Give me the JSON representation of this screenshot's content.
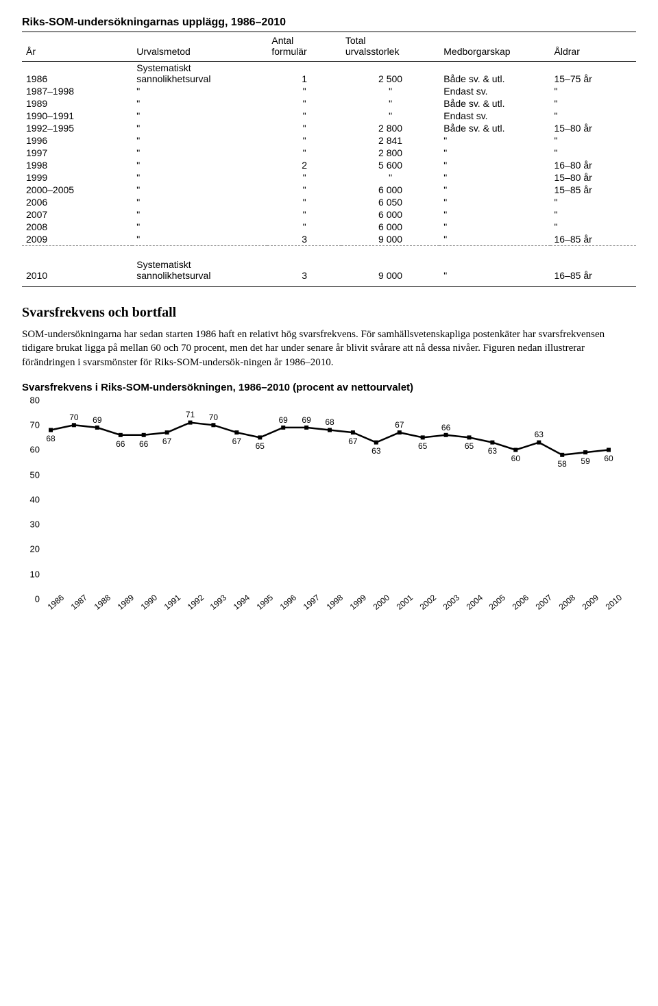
{
  "title": "Riks-SOM-undersökningarnas upplägg, 1986–2010",
  "headers": {
    "year": "År",
    "method": "Urvalsmetod",
    "forms_l1": "Antal",
    "forms_l2": "formulär",
    "size_l1": "Total",
    "size_l2": "urvalsstorlek",
    "citizen": "Medborgarskap",
    "ages": "Åldrar"
  },
  "groups": [
    {
      "rows": [
        {
          "year": "1986",
          "method_l1": "Systematiskt",
          "method_l2": "sannolikhetsurval",
          "forms": "1",
          "size": "2 500",
          "cit": "Både sv. & utl.",
          "age": "15–75 år"
        },
        {
          "year": "1987–1998",
          "method": "\"",
          "forms": "\"",
          "size": "\"",
          "cit": "Endast sv.",
          "age": "\""
        },
        {
          "year": "1989",
          "method": "\"",
          "forms": "\"",
          "size": "\"",
          "cit": "Både sv. & utl.",
          "age": "\""
        },
        {
          "year": "1990–1991",
          "method": "\"",
          "forms": "\"",
          "size": "\"",
          "cit": "Endast sv.",
          "age": "\""
        }
      ]
    },
    {
      "rows": [
        {
          "year": "1992–1995",
          "method": "\"",
          "forms": "\"",
          "size": "2 800",
          "cit": "Både sv. & utl.",
          "age": "15–80 år"
        },
        {
          "year": "1996",
          "method": "\"",
          "forms": "\"",
          "size": "2 841",
          "cit": "\"",
          "age": "\""
        },
        {
          "year": "1997",
          "method": "\"",
          "forms": "\"",
          "size": "2 800",
          "cit": "\"",
          "age": "\""
        }
      ]
    },
    {
      "rows": [
        {
          "year": "1998",
          "method": "\"",
          "forms": "2",
          "size": "5 600",
          "cit": "\"",
          "age": "16–80 år"
        },
        {
          "year": "1999",
          "method": "\"",
          "forms": "\"",
          "size": "\"",
          "cit": "\"",
          "age": "15–80 år"
        }
      ]
    },
    {
      "rows": [
        {
          "year": "2000–2005",
          "method": "\"",
          "forms": "\"",
          "size": "6 000",
          "cit": "\"",
          "age": "15–85 år"
        },
        {
          "year": "2006",
          "method": "\"",
          "forms": "\"",
          "size": "6 050",
          "cit": "\"",
          "age": "\""
        },
        {
          "year": "2007",
          "method": "\"",
          "forms": "\"",
          "size": "6 000",
          "cit": "\"",
          "age": "\""
        },
        {
          "year": "2008",
          "method": "\"",
          "forms": "\"",
          "size": "6 000",
          "cit": "\"",
          "age": "\""
        },
        {
          "year": "2009",
          "method": "\"",
          "forms": "3",
          "size": "9 000",
          "cit": "\"",
          "age": "16–85 år"
        }
      ]
    }
  ],
  "final_row": {
    "year": "2010",
    "method_l1": "Systematiskt",
    "method_l2": "sannolikhetsurval",
    "forms": "3",
    "size": "9 000",
    "cit": "\"",
    "age": "16–85 år"
  },
  "section_heading": "Svarsfrekvens och bortfall",
  "paragraph": "SOM-undersökningarna har sedan starten 1986 haft en relativt hög svarsfrekvens. För samhällsvetenskapliga postenkäter har svarsfrekvensen tidigare brukat ligga på mellan 60 och 70 procent, men det har under senare år blivit svårare att nå dessa nivåer. Figuren nedan illustrerar förändringen i svarsmönster för Riks-SOM-undersök-ningen år 1986–2010.",
  "chart_title": "Svarsfrekvens i Riks-SOM-undersökningen, 1986–2010 (procent av nettourvalet)",
  "chart": {
    "type": "line",
    "ylim": [
      0,
      80
    ],
    "ytick_step": 10,
    "y_ticks": [
      0,
      10,
      20,
      30,
      40,
      50,
      60,
      70,
      80
    ],
    "line_color": "#000000",
    "line_width": 2.5,
    "marker": "square",
    "marker_size": 6,
    "marker_fill": "#000000",
    "background": "#ffffff",
    "label_fontsize": 12,
    "years": [
      1986,
      1987,
      1988,
      1989,
      1990,
      1991,
      1992,
      1993,
      1994,
      1995,
      1996,
      1997,
      1998,
      1999,
      2000,
      2001,
      2002,
      2003,
      2004,
      2005,
      2006,
      2007,
      2008,
      2009,
      2010
    ],
    "values": [
      68,
      70,
      69,
      66,
      66,
      67,
      71,
      70,
      67,
      65,
      69,
      69,
      68,
      67,
      63,
      67,
      65,
      66,
      65,
      63,
      60,
      63,
      58,
      59,
      60
    ],
    "label_pos": [
      "below",
      "above",
      "above",
      "below",
      "below",
      "below",
      "above",
      "above",
      "below",
      "below",
      "above",
      "above",
      "above",
      "below",
      "below",
      "above",
      "below",
      "above",
      "below",
      "below",
      "below",
      "above",
      "below",
      "below",
      "below"
    ]
  }
}
